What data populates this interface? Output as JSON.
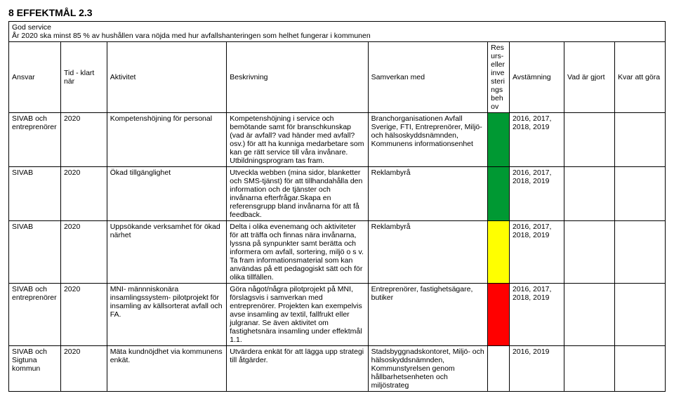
{
  "page_title": "8  EFFEKTMÅL 2.3",
  "intro": {
    "line1": "God service",
    "line2": "År 2020 ska minst 85 % av hushållen vara nöjda med hur avfallshanteringen som helhet fungerar i kommunen"
  },
  "headers": {
    "ansvar": "Ansvar",
    "tid": "Tid - klart när",
    "aktivitet": "Aktivitet",
    "beskrivning": "Beskrivning",
    "samverkan": "Samverkan med",
    "resurs": "Resurs- eller investerings behov",
    "avst": "Avstämning",
    "gjort": "Vad är gjort",
    "kvar": "Kvar att göra"
  },
  "rows": [
    {
      "ansvar": "SIVAB och entreprenörer",
      "tid": "2020",
      "aktivitet": "Kompetenshöjning för personal",
      "beskrivning": "Kompetenshöjning i service och bemötande samt för branschkunskap (vad är avfall? vad händer med avfall? osv.) för att ha kunniga medarbetare som kan ge rätt service till våra invånare. Utbildningsprogram tas fram.",
      "samverkan": "Branchorganisationen Avfall Sverige, FTI, Entreprenörer, Miljö- och hälsoskyddsnämnden, Kommunens informationsenhet",
      "flag": "green",
      "avst": "2016, 2017, 2018, 2019",
      "gjort": "",
      "kvar": ""
    },
    {
      "ansvar": "SIVAB",
      "tid": "2020",
      "aktivitet": "Ökad tillgänglighet",
      "beskrivning": "Utveckla webben (mina sidor, blanketter och SMS-tjänst) för att tillhandahålla den information och de tjänster och invånarna efterfrågar.Skapa en referensgrupp bland invånarna för att få feedback.",
      "samverkan": "Reklambyrå",
      "flag": "green",
      "avst": "2016, 2017, 2018, 2019",
      "gjort": "",
      "kvar": ""
    },
    {
      "ansvar": "SIVAB",
      "tid": "2020",
      "aktivitet": "Uppsökande verksamhet för ökad närhet",
      "beskrivning": "Delta i olika evenemang och aktiviteter för att träffa och finnas nära invånarna, lyssna på synpunkter samt berätta och informera om avfall, sortering, miljö o s v. Ta fram informationsmaterial som kan användas på ett pedagogiskt sätt och för olika tillfällen.",
      "samverkan": "Reklambyrå",
      "flag": "yellow",
      "avst": "2016, 2017, 2018, 2019",
      "gjort": "",
      "kvar": ""
    },
    {
      "ansvar": "SIVAB och entreprenörer",
      "tid": "2020",
      "aktivitet": "MNI- männniskonära insamlingssystem- pilotprojekt för insamling av källsorterat avfall och FA.",
      "beskrivning": "Göra något/några pilotprojekt på MNI, förslagsvis i samverkan med entreprenörer. Projekten kan exempelvis avse insamling av textil, fallfrukt eller julgranar. Se även aktivitet om fastighetsnära insamling under effektmål 1.1.",
      "samverkan": "Entreprenörer, fastighetsägare, butiker",
      "flag": "red",
      "avst": "2016, 2017, 2018, 2019",
      "gjort": "",
      "kvar": ""
    },
    {
      "ansvar": "SIVAB och Sigtuna kommun",
      "tid": "2020",
      "aktivitet": "Mäta kundnöjdhet via kommunens enkät.",
      "beskrivning": "Utvärdera enkät för att lägga upp strategi till åtgärder.",
      "samverkan": "Stadsbyggnadskontoret, Miljö- och hälsoskyddsnämnden, Kommunstyrelsen genom hållbarhetsenheten och miljöstrateg",
      "flag": "",
      "avst": "2016, 2019",
      "gjort": "",
      "kvar": ""
    }
  ]
}
